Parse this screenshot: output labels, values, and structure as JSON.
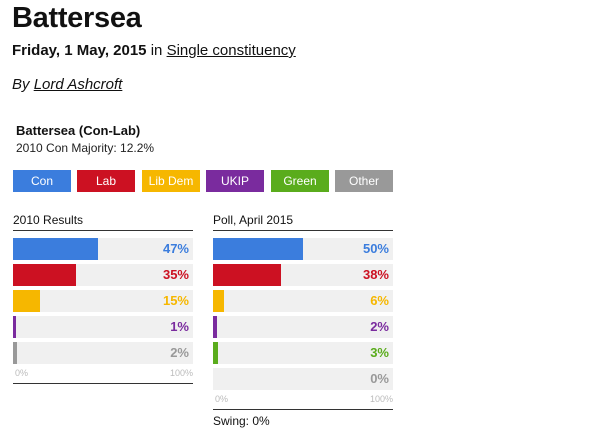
{
  "page": {
    "title": "Battersea",
    "date": "Friday, 1 May, 2015",
    "in_word": "in",
    "category_link": "Single constituency",
    "by_word": "By",
    "author_link": "Lord Ashcroft"
  },
  "widget": {
    "title": "Battersea (Con-Lab)",
    "subtitle": "2010 Con Majority: 12.2%",
    "parties": [
      {
        "label": "Con",
        "color": "#3b7ddd"
      },
      {
        "label": "Lab",
        "color": "#cc1122"
      },
      {
        "label": "Lib Dem",
        "color": "#f6b700"
      },
      {
        "label": "UKIP",
        "color": "#7a2b9e"
      },
      {
        "label": "Green",
        "color": "#5aac1c"
      },
      {
        "label": "Other",
        "color": "#999999"
      }
    ],
    "swing": "Swing: 0%"
  },
  "chart_data": [
    {
      "type": "bar",
      "title": "2010 Results",
      "categories": [
        "Con",
        "Lab",
        "Lib Dem",
        "UKIP",
        "Other"
      ],
      "values": [
        47,
        35,
        15,
        1,
        2
      ],
      "value_labels": [
        "47%",
        "35%",
        "15%",
        "1%",
        "2%"
      ],
      "colors": [
        "#3b7ddd",
        "#cc1122",
        "#f6b700",
        "#7a2b9e",
        "#999999"
      ],
      "xlim": [
        0,
        100
      ],
      "tick_labels": [
        "0%",
        "100%"
      ]
    },
    {
      "type": "bar",
      "title": "Poll, April 2015",
      "categories": [
        "Con",
        "Lab",
        "Lib Dem",
        "UKIP",
        "Green",
        "Other"
      ],
      "values": [
        50,
        38,
        6,
        2,
        3,
        0
      ],
      "value_labels": [
        "50%",
        "38%",
        "6%",
        "2%",
        "3%",
        "0%"
      ],
      "colors": [
        "#3b7ddd",
        "#cc1122",
        "#f6b700",
        "#7a2b9e",
        "#5aac1c",
        "#999999"
      ],
      "xlim": [
        0,
        100
      ],
      "tick_labels": [
        "0%",
        "100%"
      ]
    }
  ]
}
